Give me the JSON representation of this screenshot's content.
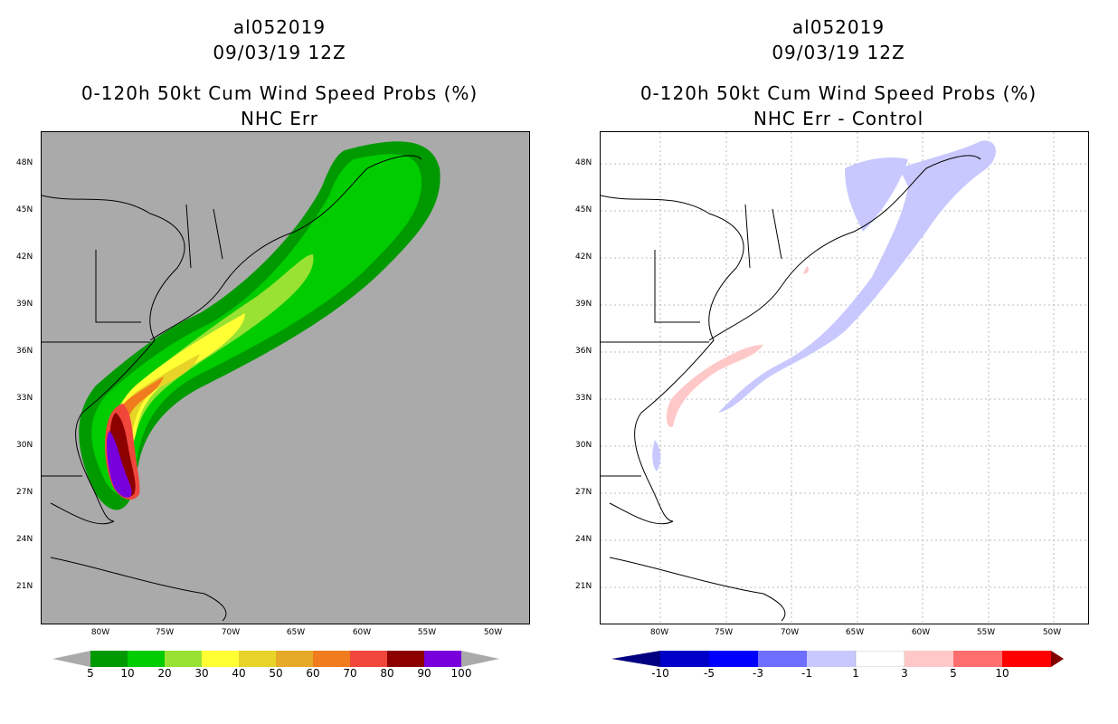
{
  "panels": [
    {
      "title_line1": "al052019",
      "title_line2": "09/03/19 12Z",
      "title_line3": "0-120h 50kt Cum Wind Speed Probs (%)",
      "title_line4": "NHC Err",
      "background": "#aaaaaa",
      "lat_labels": [
        "48N",
        "45N",
        "42N",
        "39N",
        "36N",
        "33N",
        "30N",
        "27N",
        "24N",
        "21N"
      ],
      "lon_labels": [
        "80W",
        "75W",
        "70W",
        "65W",
        "60W",
        "55W",
        "50W"
      ],
      "colorbar": {
        "labels": [
          "5",
          "10",
          "20",
          "30",
          "40",
          "50",
          "60",
          "70",
          "80",
          "90",
          "100"
        ],
        "colors": [
          "#009a00",
          "#00cc00",
          "#99e233",
          "#ffff33",
          "#e8d428",
          "#e6aa28",
          "#f07c1e",
          "#f0463c",
          "#8c0000",
          "#7800dc"
        ]
      }
    },
    {
      "title_line1": "al052019",
      "title_line2": "09/03/19 12Z",
      "title_line3": "0-120h 50kt Cum Wind Speed Probs (%)",
      "title_line4": "NHC Err - Control",
      "background": "#ffffff",
      "lat_labels": [
        "48N",
        "45N",
        "42N",
        "39N",
        "36N",
        "33N",
        "30N",
        "27N",
        "24N",
        "21N"
      ],
      "lon_labels": [
        "80W",
        "75W",
        "70W",
        "65W",
        "60W",
        "55W",
        "50W"
      ],
      "colorbar": {
        "labels": [
          "-10",
          "-5",
          "-3",
          "-1",
          "1",
          "3",
          "5",
          "10"
        ],
        "colors": [
          "#0000c8",
          "#0000ff",
          "#6e6eff",
          "#c8c8ff",
          "#ffffff",
          "#ffc8c8",
          "#ff6e6e",
          "#ff0000"
        ]
      }
    }
  ]
}
